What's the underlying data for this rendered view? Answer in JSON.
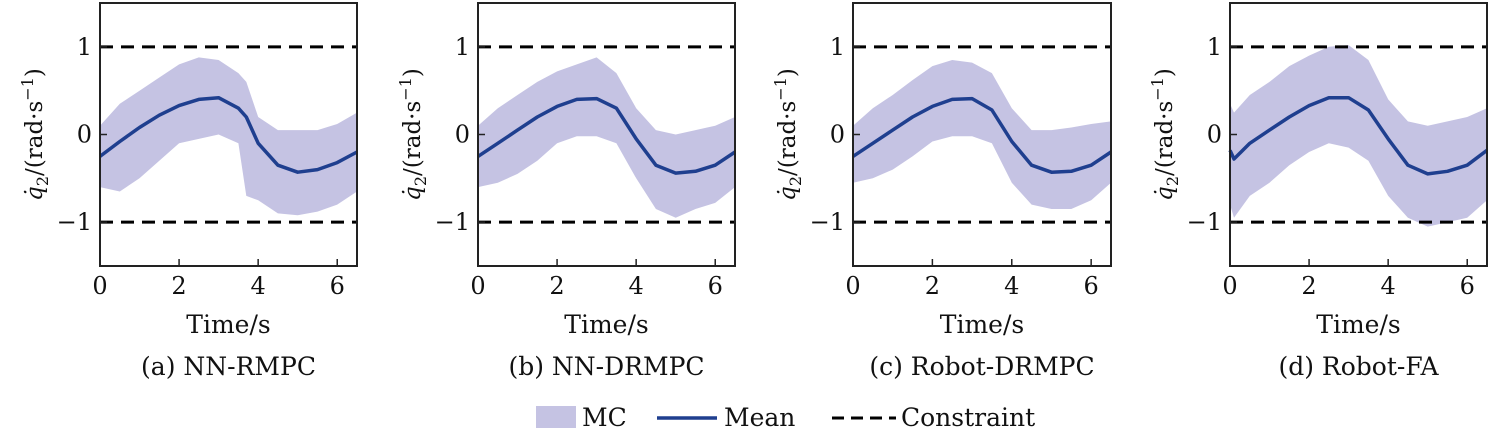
{
  "colors": {
    "band": "#c5c3e3",
    "mean": "#1f3f8f",
    "constraint": "#000000",
    "frame": "#222222"
  },
  "legend": {
    "mc": "MC",
    "mean": "Mean",
    "constraint": "Constraint"
  },
  "axes": {
    "xlabel": "Time/s",
    "ylabel_var": "q̇",
    "ylabel_sub": "2",
    "ylabel_units": "/(rad·s",
    "ylabel_exp": "−1",
    "ylabel_close": ")",
    "xticks": [
      0,
      2,
      4,
      6
    ],
    "xtick_labels": [
      "0",
      "2",
      "4",
      "6"
    ],
    "yticks": [
      -1,
      0,
      1
    ],
    "ytick_labels": [
      "−1",
      "0",
      "1"
    ],
    "xlim": [
      0,
      6.5
    ],
    "ylim": [
      -1.5,
      1.5
    ]
  },
  "chart_data": [
    {
      "type": "line",
      "caption": "(a) NN-RMPC",
      "constraints": [
        1,
        -1
      ],
      "x": [
        0,
        0.5,
        1.0,
        1.5,
        2.0,
        2.5,
        3.0,
        3.5,
        3.7,
        4.0,
        4.5,
        5.0,
        5.5,
        6.0,
        6.5
      ],
      "mean": [
        -0.25,
        -0.08,
        0.08,
        0.22,
        0.33,
        0.4,
        0.42,
        0.3,
        0.2,
        -0.1,
        -0.35,
        -0.43,
        -0.4,
        -0.32,
        -0.2
      ],
      "upper": [
        0.1,
        0.35,
        0.5,
        0.65,
        0.8,
        0.88,
        0.85,
        0.7,
        0.6,
        0.2,
        0.05,
        0.05,
        0.05,
        0.12,
        0.25
      ],
      "lower": [
        -0.6,
        -0.65,
        -0.5,
        -0.3,
        -0.1,
        -0.05,
        0.0,
        -0.1,
        -0.7,
        -0.75,
        -0.9,
        -0.92,
        -0.88,
        -0.8,
        -0.65
      ],
      "series": [
        {
          "name": "MC"
        },
        {
          "name": "Mean"
        },
        {
          "name": "Constraint"
        }
      ]
    },
    {
      "type": "line",
      "caption": "(b) NN-DRMPC",
      "constraints": [
        1,
        -1
      ],
      "x": [
        0,
        0.5,
        1.0,
        1.5,
        2.0,
        2.5,
        3.0,
        3.5,
        4.0,
        4.5,
        5.0,
        5.5,
        6.0,
        6.5
      ],
      "mean": [
        -0.25,
        -0.1,
        0.05,
        0.2,
        0.32,
        0.4,
        0.41,
        0.3,
        -0.05,
        -0.35,
        -0.44,
        -0.42,
        -0.35,
        -0.2
      ],
      "upper": [
        0.1,
        0.3,
        0.45,
        0.6,
        0.72,
        0.8,
        0.88,
        0.7,
        0.3,
        0.05,
        0.0,
        0.05,
        0.1,
        0.2
      ],
      "lower": [
        -0.6,
        -0.55,
        -0.45,
        -0.3,
        -0.1,
        -0.02,
        -0.02,
        -0.1,
        -0.5,
        -0.85,
        -0.95,
        -0.85,
        -0.78,
        -0.6
      ]
    },
    {
      "type": "line",
      "caption": "(c) Robot-DRMPC",
      "constraints": [
        1,
        -1
      ],
      "x": [
        0,
        0.5,
        1.0,
        1.5,
        2.0,
        2.5,
        3.0,
        3.5,
        4.0,
        4.5,
        5.0,
        5.5,
        6.0,
        6.5
      ],
      "mean": [
        -0.25,
        -0.1,
        0.05,
        0.2,
        0.32,
        0.4,
        0.41,
        0.28,
        -0.08,
        -0.35,
        -0.43,
        -0.42,
        -0.35,
        -0.2
      ],
      "upper": [
        0.1,
        0.3,
        0.45,
        0.62,
        0.78,
        0.85,
        0.82,
        0.7,
        0.3,
        0.05,
        0.05,
        0.08,
        0.12,
        0.15
      ],
      "lower": [
        -0.55,
        -0.5,
        -0.4,
        -0.25,
        -0.08,
        -0.02,
        -0.02,
        -0.1,
        -0.55,
        -0.8,
        -0.85,
        -0.85,
        -0.75,
        -0.55
      ]
    },
    {
      "type": "line",
      "caption": "(d) Robot-FA",
      "constraints": [
        1,
        -1
      ],
      "x": [
        0,
        0.1,
        0.5,
        1.0,
        1.5,
        2.0,
        2.5,
        3.0,
        3.5,
        4.0,
        4.5,
        5.0,
        5.5,
        6.0,
        6.5
      ],
      "mean": [
        -0.18,
        -0.28,
        -0.1,
        0.05,
        0.2,
        0.33,
        0.42,
        0.42,
        0.28,
        -0.05,
        -0.35,
        -0.45,
        -0.42,
        -0.35,
        -0.18
      ],
      "upper": [
        0.35,
        0.25,
        0.45,
        0.6,
        0.78,
        0.9,
        1.0,
        1.02,
        0.85,
        0.4,
        0.15,
        0.1,
        0.15,
        0.2,
        0.3
      ],
      "lower": [
        -0.8,
        -0.95,
        -0.7,
        -0.55,
        -0.35,
        -0.2,
        -0.1,
        -0.15,
        -0.3,
        -0.7,
        -0.95,
        -1.05,
        -1.0,
        -0.95,
        -0.75
      ]
    }
  ]
}
